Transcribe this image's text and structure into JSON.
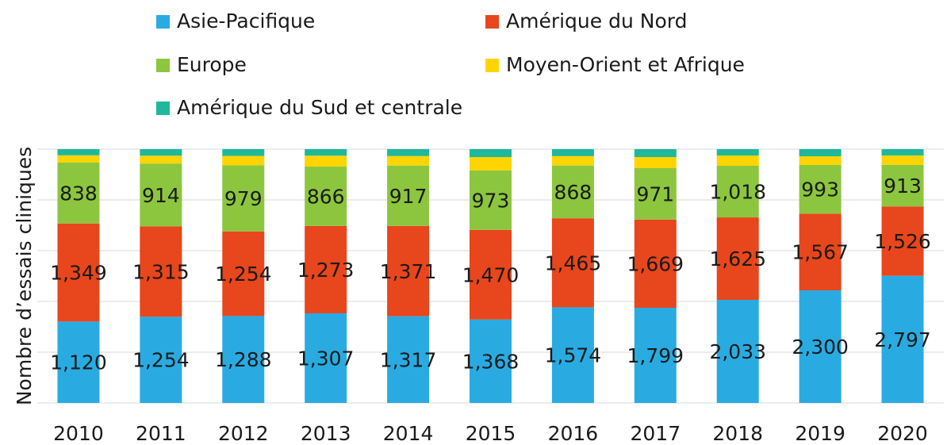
{
  "chart_data": {
    "type": "stacked_percent_bar",
    "y_label": "Nombre d’essais cliniques",
    "categories": [
      "2010",
      "2011",
      "2012",
      "2013",
      "2014",
      "2015",
      "2016",
      "2017",
      "2018",
      "2019",
      "2020"
    ],
    "series": [
      {
        "name": "Asie-Pacifique",
        "color": "#29abe2",
        "values": [
          1120,
          1254,
          1288,
          1307,
          1317,
          1368,
          1574,
          1799,
          2033,
          2300,
          2797
        ],
        "value_labels": [
          "1,120",
          "1,254",
          "1,288",
          "1,307",
          "1,317",
          "1,368",
          "1,574",
          "1,799",
          "2,033",
          "2,300",
          "2,797"
        ]
      },
      {
        "name": "Amérique du Nord",
        "color": "#e8461c",
        "values": [
          1349,
          1315,
          1254,
          1273,
          1371,
          1470,
          1465,
          1669,
          1625,
          1567,
          1526
        ],
        "value_labels": [
          "1,349",
          "1,315",
          "1,254",
          "1,273",
          "1,371",
          "1,470",
          "1,465",
          "1,669",
          "1,625",
          "1,567",
          "1,526"
        ]
      },
      {
        "name": "Europe",
        "color": "#8cc63f",
        "values": [
          838,
          914,
          979,
          866,
          917,
          973,
          868,
          971,
          1018,
          993,
          913
        ],
        "value_labels": [
          "838",
          "914",
          "979",
          "866",
          "917",
          "973",
          "868",
          "971",
          "1,018",
          "993",
          "913"
        ]
      },
      {
        "name": "Moyen-Orient et Afrique",
        "color": "#ffd400",
        "values": [
          100,
          115,
          140,
          160,
          145,
          220,
          155,
          210,
          203,
          178,
          209
        ]
      },
      {
        "name": "Amérique du Sud et centrale",
        "color": "#1fb89a",
        "values": [
          85,
          95,
          100,
          95,
          105,
          130,
          115,
          150,
          125,
          146,
          139
        ]
      }
    ],
    "ylim": [
      0,
      100
    ],
    "yticks": [
      0,
      20,
      40,
      60,
      80,
      100
    ],
    "grid": true
  }
}
